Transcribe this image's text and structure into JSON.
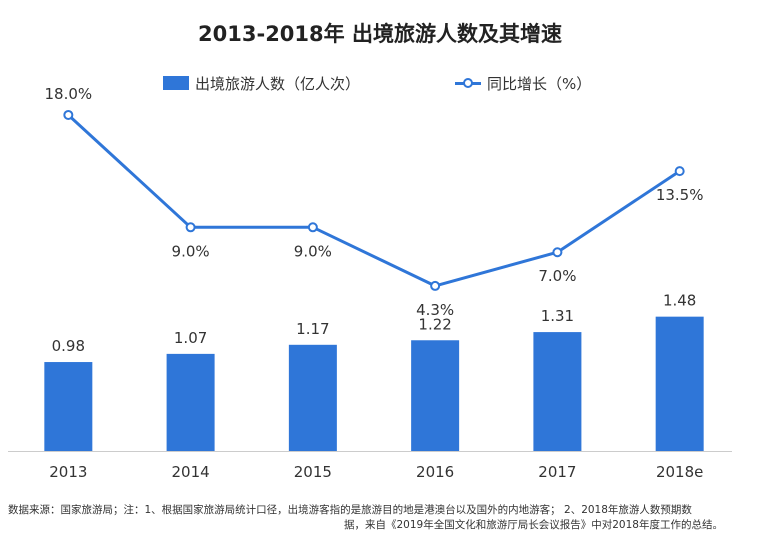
{
  "chart_data": {
    "type": "bar+line",
    "title": "2013-2018年 出境旅游人数及其增速",
    "categories": [
      "2013",
      "2014",
      "2015",
      "2016",
      "2017",
      "2018e"
    ],
    "series": [
      {
        "name": "出境旅游人数（亿人次）",
        "type": "bar",
        "values": [
          0.98,
          1.07,
          1.17,
          1.22,
          1.31,
          1.48
        ],
        "labels": [
          "0.98",
          "1.07",
          "1.17",
          "1.22",
          "1.31",
          "1.48"
        ],
        "color": "#2f76d8"
      },
      {
        "name": "同比增长（%）",
        "type": "line",
        "values": [
          18.0,
          9.0,
          9.0,
          4.3,
          7.0,
          13.5
        ],
        "labels": [
          "18.0%",
          "9.0%",
          "9.0%",
          "4.3%",
          "7.0%",
          "13.5%"
        ],
        "color": "#2f76d8"
      }
    ],
    "bar_ylim": [
      0,
      2.6
    ],
    "line_ylim": [
      -5,
      20
    ]
  },
  "footnote": {
    "line1": "数据来源：国家旅游局；注：1、根据国家旅游局统计口径，出境游客指的是旅游目的地是港澳台以及国外的内地游客；  2、2018年旅游人数预期数",
    "line2": "据，来自《2019年全国文化和旅游厅局长会议报告》中对2018年度工作的总结。"
  }
}
